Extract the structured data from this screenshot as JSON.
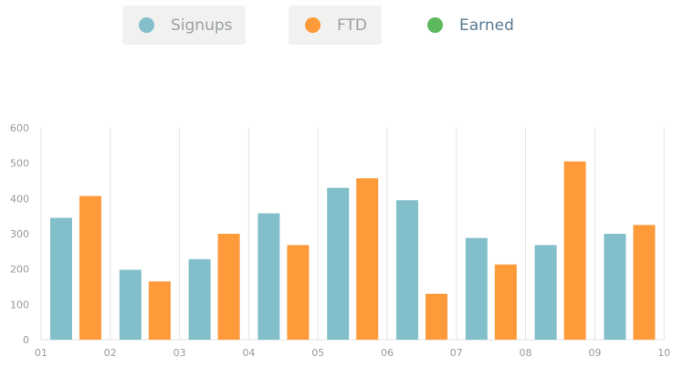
{
  "legend": {
    "items": [
      {
        "label": "Signups",
        "color": "#83bfca",
        "active": true
      },
      {
        "label": "FTD",
        "color": "#ff9a3a",
        "active": true
      },
      {
        "label": "Earned",
        "color": "#5cb85c",
        "active": false
      }
    ]
  },
  "chart_data": {
    "type": "bar",
    "categories": [
      "01",
      "02",
      "03",
      "04",
      "05",
      "06",
      "07",
      "08",
      "09"
    ],
    "x_tick_labels": [
      "01",
      "02",
      "03",
      "04",
      "05",
      "06",
      "07",
      "08",
      "09",
      "10"
    ],
    "y_ticks": [
      0,
      100,
      200,
      300,
      400,
      500,
      600
    ],
    "ylim": [
      0,
      600
    ],
    "grid": "vertical",
    "legend_position": "top",
    "series": [
      {
        "name": "Signups",
        "color": "#83bfca",
        "values": [
          345,
          198,
          228,
          358,
          430,
          395,
          288,
          268,
          300
        ]
      },
      {
        "name": "FTD",
        "color": "#ff9a3a",
        "values": [
          407,
          165,
          300,
          268,
          457,
          130,
          213,
          505,
          325
        ]
      }
    ]
  }
}
